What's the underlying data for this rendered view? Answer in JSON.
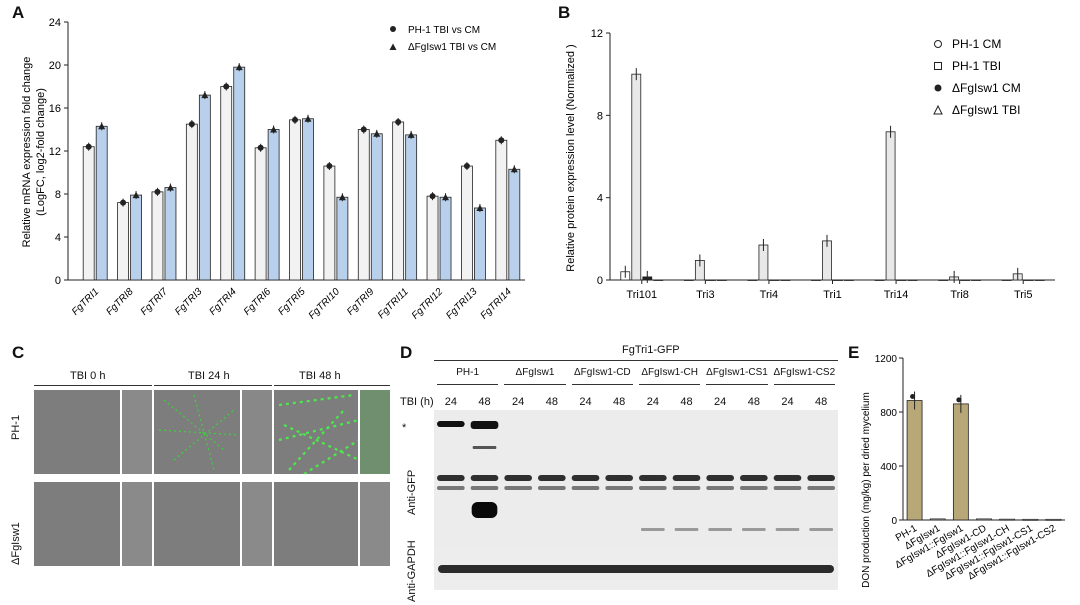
{
  "panels": {
    "a": "A",
    "b": "B",
    "c": "C",
    "d": "D",
    "e": "E"
  },
  "chart_data": [
    {
      "type": "bar",
      "panel": "A",
      "categories": [
        "FgTRI1",
        "FgTRI8",
        "FgTRI7",
        "FgTRI3",
        "FgTRI4",
        "FgTRI6",
        "FgTRI5",
        "FgTRI10",
        "FgTRI9",
        "FgTRI11",
        "FgTRI12",
        "FgTRI13",
        "FgTRI14"
      ],
      "series": [
        {
          "name": "PH-1 TBI vs CM",
          "values": [
            12.4,
            7.2,
            8.2,
            14.5,
            18.0,
            12.3,
            14.9,
            10.6,
            14.0,
            14.7,
            7.8,
            10.6,
            13.0
          ],
          "color": "#f2f2f2"
        },
        {
          "name": "ΔFgIsw1 TBI vs CM",
          "values": [
            14.3,
            7.9,
            8.6,
            17.2,
            19.8,
            14.0,
            15.0,
            7.7,
            13.6,
            13.5,
            7.7,
            6.7,
            10.3
          ],
          "color": "#b9d0ec"
        }
      ],
      "ylabel": "Relative mRNA expression fold change",
      "ylabel2": "(LogFC, log2-fold change)",
      "ylim": [
        0,
        24
      ],
      "yticks": [
        "0",
        "4",
        "8",
        "12",
        "16",
        "20",
        "24"
      ]
    },
    {
      "type": "bar",
      "panel": "B",
      "categories": [
        "Tri101",
        "Tri3",
        "Tri4",
        "Tri1",
        "Tri14",
        "Tri8",
        "Tri5"
      ],
      "series": [
        {
          "name": "PH-1 CM",
          "values": [
            0.4,
            0.0,
            0.0,
            0.0,
            0.0,
            0.0,
            0.0
          ]
        },
        {
          "name": "PH-1 TBI",
          "values": [
            10.0,
            0.95,
            1.7,
            1.9,
            7.2,
            0.15,
            0.3
          ]
        },
        {
          "name": "ΔFgIsw1 CM",
          "values": [
            0.15,
            0.0,
            0.0,
            0.0,
            0.0,
            0.0,
            0.0
          ]
        },
        {
          "name": "ΔFgIsw1 TBI",
          "values": [
            0.0,
            0.0,
            0.0,
            0.0,
            0.0,
            0.0,
            0.0
          ]
        }
      ],
      "ylabel": "Relative protein expression level (Normalized )",
      "ylim": [
        0,
        12
      ],
      "yticks": [
        "0",
        "4",
        "8",
        "12"
      ]
    },
    {
      "type": "bar",
      "panel": "E",
      "categories": [
        "PH-1",
        "ΔFgIsw1",
        "ΔFgIsw1::FgIsw1",
        "ΔFgIsw1-CD",
        "ΔFgIsw1::FgIsw1-CH",
        "ΔFgIsw1::FgIsw1-CS1",
        "ΔFgIsw1::FgIsw1-CS2"
      ],
      "values": [
        885,
        8,
        860,
        8,
        6,
        5,
        5
      ],
      "ylabel": "DON production (mg/kg) per dried mycelium",
      "ylim": [
        0,
        1200
      ],
      "yticks": [
        "0",
        "400",
        "800",
        "1200"
      ]
    }
  ],
  "panel_c": {
    "columns": [
      "TBI 0 h",
      "TBI 24 h",
      "TBI 48 h"
    ],
    "rows": [
      "PH-1",
      "ΔFgIsw1"
    ]
  },
  "panel_d": {
    "title": "FgTri1-GFP",
    "strains": [
      "PH-1",
      "ΔFgIsw1",
      "ΔFgIsw1-CD",
      "ΔFgIsw1-CH",
      "ΔFgIsw1-CS1",
      "ΔFgIsw1-CS2"
    ],
    "tbi_label": "TBI (h)",
    "times": [
      "24",
      "48",
      "24",
      "48",
      "24",
      "48",
      "24",
      "48",
      "24",
      "48",
      "24",
      "48"
    ],
    "anti_gfp": "Anti-GFP",
    "anti_gapdh": "Anti-GAPDH",
    "star": "*"
  }
}
